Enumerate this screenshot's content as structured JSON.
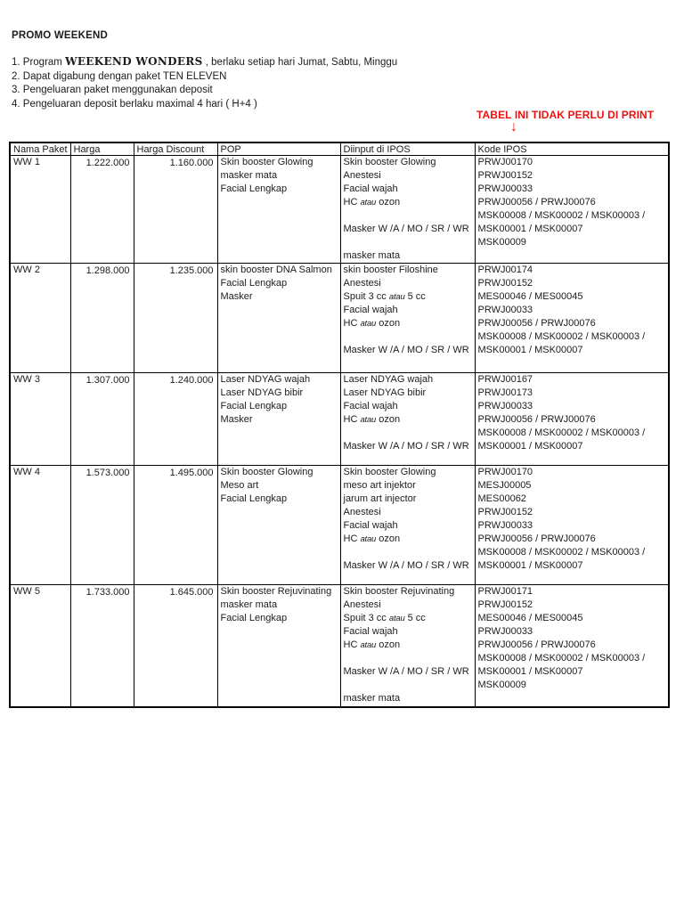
{
  "page": {
    "background": "#ffffff",
    "accent_red": "#ee1111",
    "text_color": "#1c1c1c"
  },
  "header": {
    "title": "PROMO WEEKEND"
  },
  "intro": {
    "line1": {
      "prefix": "1. Program ",
      "brand": "WEEKEND WONDERS",
      "suffix": " , berlaku setiap hari Jumat, Sabtu, Minggu"
    },
    "line2": "2. Dapat digabung dengan paket TEN ELEVEN",
    "line3": "3. Pengeluaran paket menggunakan deposit",
    "line4": "4. Pengeluaran deposit berlaku maximal 4 hari ( H+4 )"
  },
  "note": {
    "text": "TABEL INI TIDAK PERLU DI PRINT",
    "arrow_glyph": "↓"
  },
  "table": {
    "columns": [
      "Nama Paket",
      "Harga",
      "Harga Discount",
      "POP",
      "Diinput di IPOS",
      "Kode IPOS"
    ],
    "rows": [
      {
        "nama": "WW 1",
        "harga": "1.222.000",
        "harga_discount": "1.160.000",
        "pop": [
          "Skin booster Glowing",
          "masker mata",
          "Facial Lengkap"
        ],
        "ipos": [
          "Skin booster Glowing",
          "Anestesi",
          "Facial wajah",
          "HC atau ozon",
          "",
          "Masker W /A / MO / SR / WR",
          "",
          "masker mata"
        ],
        "kode": [
          "PRWJ00170",
          "PRWJ00152",
          "PRWJ00033",
          "PRWJ00056 / PRWJ00076",
          "MSK00008 / MSK00002 / MSK00003 /",
          "MSK00001 / MSK00007",
          "MSK00009"
        ]
      },
      {
        "nama": "WW 2",
        "harga": "1.298.000",
        "harga_discount": "1.235.000",
        "pop": [
          "skin booster DNA Salmon",
          "Facial Lengkap",
          "Masker"
        ],
        "ipos": [
          "skin booster Filoshine",
          "Anestesi",
          "Spuit 3 cc atau 5 cc",
          "Facial wajah",
          "HC atau ozon",
          "",
          "Masker W /A / MO / SR / WR"
        ],
        "kode": [
          "PRWJ00174",
          "PRWJ00152",
          "MES00046 / MES00045",
          "PRWJ00033",
          "PRWJ00056 / PRWJ00076",
          "MSK00008 / MSK00002 / MSK00003 /",
          "MSK00001 / MSK00007"
        ]
      },
      {
        "nama": "WW 3",
        "harga": "1.307.000",
        "harga_discount": "1.240.000",
        "pop": [
          "Laser NDYAG wajah",
          "Laser NDYAG bibir",
          "Facial Lengkap",
          "Masker"
        ],
        "ipos": [
          "Laser NDYAG wajah",
          "Laser NDYAG bibir",
          "Facial wajah",
          "HC atau ozon",
          "",
          "Masker W /A / MO / SR / WR"
        ],
        "kode": [
          "PRWJ00167",
          "PRWJ00173",
          "PRWJ00033",
          "PRWJ00056 / PRWJ00076",
          "MSK00008 / MSK00002 / MSK00003 /",
          "MSK00001 / MSK00007"
        ]
      },
      {
        "nama": "WW 4",
        "harga": "1.573.000",
        "harga_discount": "1.495.000",
        "pop": [
          "Skin booster Glowing",
          "Meso art",
          "Facial Lengkap"
        ],
        "ipos": [
          "Skin booster Glowing",
          "meso art injektor",
          "jarum art injector",
          "Anestesi",
          "Facial wajah",
          "HC atau ozon",
          "",
          "Masker W /A / MO / SR / WR"
        ],
        "kode": [
          "PRWJ00170",
          "MESJ00005",
          "MES00062",
          "PRWJ00152",
          "PRWJ00033",
          "PRWJ00056 / PRWJ00076",
          "MSK00008 / MSK00002 / MSK00003 /",
          "MSK00001 / MSK00007"
        ]
      },
      {
        "nama": "WW 5",
        "harga": "1.733.000",
        "harga_discount": "1.645.000",
        "pop": [
          "Skin booster Rejuvinating",
          "masker mata",
          "Facial Lengkap"
        ],
        "ipos": [
          "Skin booster Rejuvinating",
          "Anestesi",
          "Spuit 3 cc atau 5 cc",
          "Facial wajah",
          "HC atau ozon",
          "",
          "Masker W /A / MO / SR / WR",
          "",
          "masker mata"
        ],
        "kode": [
          "PRWJ00171",
          "PRWJ00152",
          "MES00046 / MES00045",
          "PRWJ00033",
          "PRWJ00056 / PRWJ00076",
          "MSK00008 / MSK00002 / MSK00003 /",
          "MSK00001 / MSK00007",
          "MSK00009"
        ]
      }
    ]
  }
}
